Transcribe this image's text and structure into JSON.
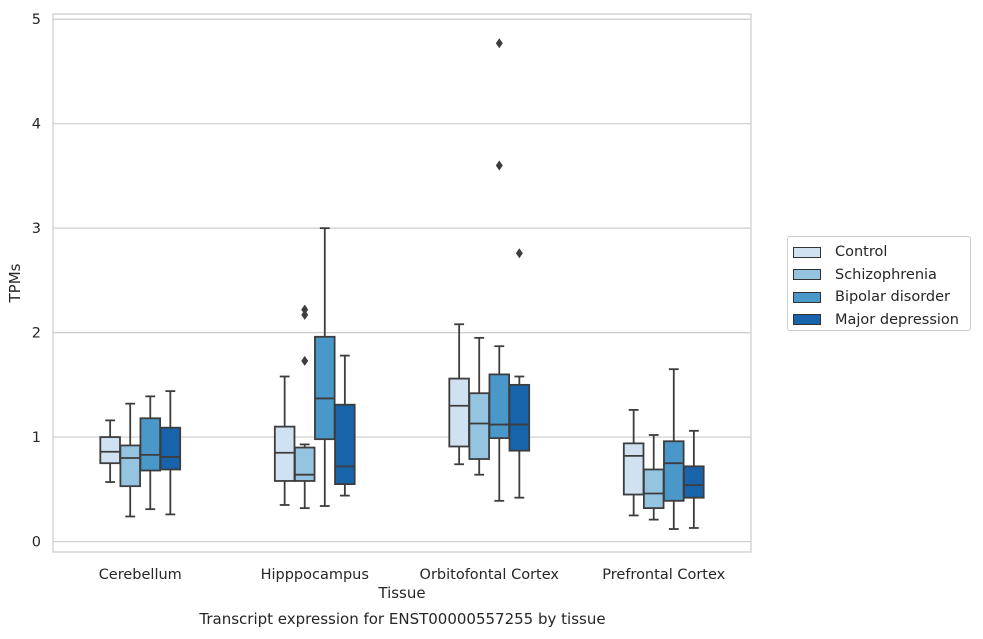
{
  "chart_data": {
    "type": "box",
    "caption": "Transcript expression for ENST00000557255 by tissue",
    "xlabel": "Tissue",
    "ylabel": "TPMs",
    "ylim": [
      -0.1,
      5.05
    ],
    "yticks": [
      0,
      1,
      2,
      3,
      4,
      5
    ],
    "grid": true,
    "legend_placement": "right",
    "categories": [
      "Cerebellum",
      "Hipppocampus",
      "Orbitofontal Cortex",
      "Prefrontal Cortex"
    ],
    "series": [
      {
        "name": "Control",
        "color": "#d0e1f2",
        "boxes": [
          {
            "whislo": 0.57,
            "q1": 0.75,
            "med": 0.86,
            "q3": 1.0,
            "whishi": 1.16,
            "fliers": []
          },
          {
            "whislo": 0.35,
            "q1": 0.58,
            "med": 0.85,
            "q3": 1.1,
            "whishi": 1.58,
            "fliers": []
          },
          {
            "whislo": 0.74,
            "q1": 0.91,
            "med": 1.3,
            "q3": 1.56,
            "whishi": 2.08,
            "fliers": []
          },
          {
            "whislo": 0.25,
            "q1": 0.45,
            "med": 0.82,
            "q3": 0.94,
            "whishi": 1.26,
            "fliers": []
          }
        ]
      },
      {
        "name": "Schizophrenia",
        "color": "#94c4df",
        "boxes": [
          {
            "whislo": 0.24,
            "q1": 0.53,
            "med": 0.8,
            "q3": 0.92,
            "whishi": 1.32,
            "fliers": []
          },
          {
            "whislo": 0.32,
            "q1": 0.58,
            "med": 0.64,
            "q3": 0.9,
            "whishi": 0.93,
            "fliers": [
              1.73,
              2.17,
              2.22
            ]
          },
          {
            "whislo": 0.64,
            "q1": 0.79,
            "med": 1.13,
            "q3": 1.42,
            "whishi": 1.95,
            "fliers": []
          },
          {
            "whislo": 0.21,
            "q1": 0.32,
            "med": 0.46,
            "q3": 0.69,
            "whishi": 1.02,
            "fliers": []
          }
        ]
      },
      {
        "name": "Bipolar disorder",
        "color": "#4a98c9",
        "boxes": [
          {
            "whislo": 0.31,
            "q1": 0.68,
            "med": 0.83,
            "q3": 1.18,
            "whishi": 1.39,
            "fliers": []
          },
          {
            "whislo": 0.34,
            "q1": 0.98,
            "med": 1.37,
            "q3": 1.96,
            "whishi": 3.0,
            "fliers": []
          },
          {
            "whislo": 0.39,
            "q1": 0.99,
            "med": 1.12,
            "q3": 1.6,
            "whishi": 1.87,
            "fliers": [
              3.6,
              4.77
            ]
          },
          {
            "whislo": 0.12,
            "q1": 0.39,
            "med": 0.75,
            "q3": 0.96,
            "whishi": 1.65,
            "fliers": []
          }
        ]
      },
      {
        "name": "Major depression",
        "color": "#1764ab",
        "boxes": [
          {
            "whislo": 0.26,
            "q1": 0.69,
            "med": 0.81,
            "q3": 1.09,
            "whishi": 1.44,
            "fliers": []
          },
          {
            "whislo": 0.44,
            "q1": 0.55,
            "med": 0.72,
            "q3": 1.31,
            "whishi": 1.78,
            "fliers": []
          },
          {
            "whislo": 0.42,
            "q1": 0.87,
            "med": 1.12,
            "q3": 1.5,
            "whishi": 1.58,
            "fliers": [
              2.76
            ]
          },
          {
            "whislo": 0.13,
            "q1": 0.42,
            "med": 0.54,
            "q3": 0.72,
            "whishi": 1.06,
            "fliers": []
          }
        ]
      }
    ]
  }
}
